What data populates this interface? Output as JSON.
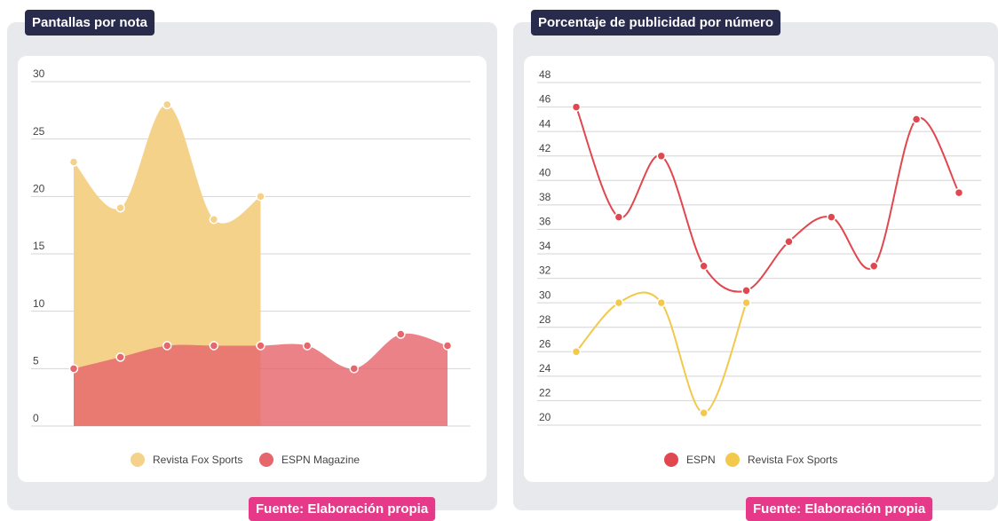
{
  "chart_data": [
    {
      "type": "area",
      "title": "Pantallas por nota",
      "source": "Fuente: Elaboración propia",
      "categories": [
        null,
        null,
        null,
        null,
        null,
        null,
        null,
        null,
        null
      ],
      "series": [
        {
          "name": "Revista Fox Sports",
          "color": "#f5d28a",
          "values": [
            23,
            19,
            28,
            18,
            20,
            null,
            null,
            null,
            null
          ]
        },
        {
          "name": "ESPN Magazine",
          "color": "#e5676c",
          "values": [
            5,
            6,
            7,
            7,
            7,
            7,
            5,
            8,
            7
          ]
        }
      ],
      "ylim": [
        0,
        30
      ],
      "yticks": [
        0,
        5,
        10,
        15,
        20,
        25,
        30
      ],
      "grid": true,
      "legend": "bottom"
    },
    {
      "type": "line",
      "title": "Porcentaje de publicidad por número",
      "source": "Fuente: Elaboración propia",
      "categories": [
        null,
        null,
        null,
        null,
        null,
        null,
        null,
        null,
        null,
        null
      ],
      "series": [
        {
          "name": "ESPN",
          "color": "#e0474f",
          "values": [
            46,
            37,
            42,
            33,
            31,
            35,
            37,
            33,
            45,
            39
          ]
        },
        {
          "name": "Revista Fox Sports",
          "color": "#f2c94c",
          "values": [
            26,
            30,
            30,
            21,
            30,
            null,
            null,
            null,
            null,
            null
          ]
        }
      ],
      "ylim": [
        20,
        48
      ],
      "yticks": [
        20,
        22,
        24,
        26,
        28,
        30,
        32,
        34,
        36,
        38,
        40,
        42,
        44,
        46,
        48
      ],
      "grid": true,
      "legend": "bottom"
    }
  ]
}
